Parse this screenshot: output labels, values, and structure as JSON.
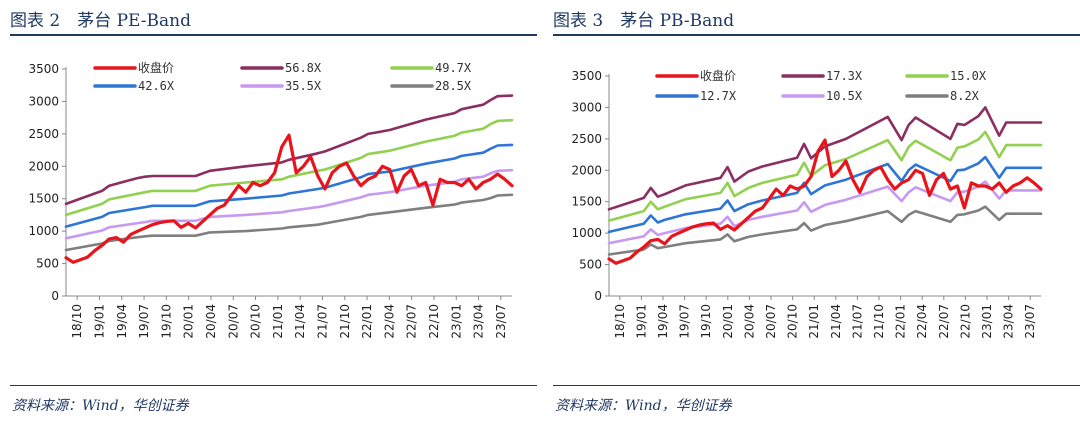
{
  "chart_data": [
    {
      "type": "line",
      "title": "图表 2　茅台 PE-Band",
      "source": "资料来源：Wind，华创证券",
      "ylim": [
        0,
        3500
      ],
      "yticks": [
        0,
        500,
        1000,
        1500,
        2000,
        2500,
        3000,
        3500
      ],
      "xticks": [
        "18/10",
        "19/01",
        "19/04",
        "19/07",
        "19/10",
        "20/01",
        "20/04",
        "20/07",
        "20/10",
        "21/01",
        "21/04",
        "21/07",
        "21/10",
        "22/01",
        "22/04",
        "22/07",
        "22/10",
        "23/01",
        "23/04",
        "23/07"
      ],
      "xrange": [
        0,
        62
      ],
      "series": [
        {
          "name": "收盘价",
          "color": "#e8141b",
          "width": 3.2,
          "x": [
            0,
            1,
            2,
            3,
            4,
            5,
            6,
            7,
            8,
            9,
            10,
            11,
            12,
            13,
            14,
            15,
            16,
            17,
            18,
            19,
            20,
            21,
            22,
            23,
            24,
            25,
            26,
            27,
            28,
            29,
            30,
            31,
            32,
            33,
            34,
            35,
            36,
            37,
            38,
            39,
            40,
            41,
            42,
            43,
            44,
            45,
            46,
            47,
            48,
            49,
            50,
            51,
            52,
            53,
            54,
            55,
            56,
            57,
            58,
            59,
            60,
            61,
            62
          ],
          "values": [
            590,
            520,
            560,
            600,
            700,
            780,
            880,
            900,
            830,
            950,
            1000,
            1050,
            1100,
            1130,
            1150,
            1160,
            1060,
            1120,
            1050,
            1150,
            1250,
            1350,
            1400,
            1550,
            1700,
            1600,
            1750,
            1700,
            1750,
            1900,
            2300,
            2480,
            1900,
            2000,
            2150,
            1850,
            1650,
            1900,
            2000,
            2050,
            1850,
            1700,
            1800,
            1850,
            2000,
            1950,
            1600,
            1850,
            1950,
            1700,
            1750,
            1400,
            1800,
            1750,
            1750,
            1700,
            1800,
            1650,
            1750,
            1800,
            1880,
            1800,
            1700
          ]
        },
        {
          "name": "56.8X",
          "color": "#8b2e61",
          "width": 2.6,
          "x": [
            0,
            5,
            6,
            10,
            11,
            12,
            13,
            17,
            18,
            20,
            25,
            30,
            31,
            35,
            36,
            41,
            42,
            45,
            50,
            54,
            55,
            58,
            59,
            60,
            62
          ],
          "values": [
            1420,
            1620,
            1700,
            1820,
            1840,
            1850,
            1850,
            1850,
            1850,
            1930,
            2000,
            2060,
            2100,
            2200,
            2230,
            2440,
            2500,
            2560,
            2720,
            2820,
            2880,
            2950,
            3020,
            3080,
            3090
          ]
        },
        {
          "name": "49.7X",
          "color": "#92d050",
          "width": 2.6,
          "x": [
            0,
            5,
            6,
            11,
            12,
            17,
            18,
            20,
            25,
            30,
            31,
            35,
            36,
            41,
            42,
            45,
            50,
            54,
            55,
            58,
            59,
            60,
            62
          ],
          "values": [
            1250,
            1420,
            1490,
            1600,
            1620,
            1620,
            1620,
            1700,
            1750,
            1800,
            1840,
            1930,
            1950,
            2130,
            2190,
            2240,
            2380,
            2470,
            2520,
            2580,
            2650,
            2700,
            2710
          ]
        },
        {
          "name": "42.6X",
          "color": "#2e75d6",
          "width": 2.6,
          "x": [
            0,
            5,
            6,
            11,
            12,
            17,
            18,
            20,
            25,
            30,
            31,
            35,
            36,
            41,
            42,
            45,
            50,
            54,
            55,
            58,
            59,
            60,
            62
          ],
          "values": [
            1070,
            1220,
            1280,
            1370,
            1390,
            1390,
            1390,
            1460,
            1500,
            1550,
            1580,
            1650,
            1670,
            1830,
            1880,
            1920,
            2040,
            2120,
            2160,
            2210,
            2270,
            2320,
            2330
          ]
        },
        {
          "name": "35.5X",
          "color": "#c899f0",
          "width": 2.6,
          "x": [
            0,
            5,
            6,
            11,
            12,
            17,
            18,
            20,
            25,
            30,
            31,
            35,
            36,
            41,
            42,
            45,
            50,
            54,
            55,
            58,
            59,
            60,
            62
          ],
          "values": [
            890,
            1010,
            1060,
            1140,
            1160,
            1160,
            1160,
            1220,
            1250,
            1290,
            1310,
            1370,
            1390,
            1520,
            1560,
            1600,
            1700,
            1760,
            1800,
            1840,
            1890,
            1930,
            1940
          ]
        },
        {
          "name": "28.5X",
          "color": "#7f7f7f",
          "width": 2.6,
          "x": [
            0,
            5,
            6,
            11,
            12,
            17,
            18,
            20,
            25,
            30,
            31,
            35,
            36,
            41,
            42,
            45,
            50,
            54,
            55,
            58,
            59,
            60,
            62
          ],
          "values": [
            710,
            810,
            850,
            920,
            930,
            930,
            930,
            980,
            1000,
            1040,
            1060,
            1100,
            1120,
            1220,
            1250,
            1290,
            1360,
            1410,
            1440,
            1480,
            1510,
            1550,
            1560
          ]
        }
      ]
    },
    {
      "type": "line",
      "title": "图表 3　茅台 PB-Band",
      "source": "资料来源：Wind，华创证券",
      "ylim": [
        0,
        3500
      ],
      "yticks": [
        0,
        500,
        1000,
        1500,
        2000,
        2500,
        3000,
        3500
      ],
      "xticks": [
        "18/10",
        "19/01",
        "19/04",
        "19/07",
        "19/10",
        "20/01",
        "20/04",
        "20/07",
        "20/10",
        "21/01",
        "21/04",
        "21/07",
        "21/10",
        "22/01",
        "22/04",
        "22/07",
        "22/10",
        "23/01",
        "23/04",
        "23/07"
      ],
      "xrange": [
        0,
        62
      ],
      "series": [
        {
          "name": "收盘价",
          "color": "#e8141b",
          "width": 3.2,
          "x": [
            0,
            1,
            2,
            3,
            4,
            5,
            6,
            7,
            8,
            9,
            10,
            11,
            12,
            13,
            14,
            15,
            16,
            17,
            18,
            19,
            20,
            21,
            22,
            23,
            24,
            25,
            26,
            27,
            28,
            29,
            30,
            31,
            32,
            33,
            34,
            35,
            36,
            37,
            38,
            39,
            40,
            41,
            42,
            43,
            44,
            45,
            46,
            47,
            48,
            49,
            50,
            51,
            52,
            53,
            54,
            55,
            56,
            57,
            58,
            59,
            60,
            61,
            62
          ],
          "values": [
            590,
            520,
            560,
            600,
            700,
            780,
            880,
            900,
            830,
            950,
            1000,
            1050,
            1100,
            1130,
            1150,
            1160,
            1060,
            1120,
            1050,
            1150,
            1250,
            1350,
            1400,
            1550,
            1700,
            1600,
            1750,
            1700,
            1750,
            1900,
            2300,
            2480,
            1900,
            2000,
            2150,
            1850,
            1650,
            1900,
            2000,
            2050,
            1850,
            1700,
            1800,
            1850,
            2000,
            1950,
            1600,
            1850,
            1950,
            1700,
            1750,
            1400,
            1800,
            1750,
            1750,
            1700,
            1800,
            1650,
            1750,
            1800,
            1880,
            1800,
            1700
          ]
        },
        {
          "name": "17.3X",
          "color": "#8b2e61",
          "width": 2.6,
          "x": [
            0,
            5,
            6,
            7,
            8,
            11,
            16,
            17,
            18,
            20,
            22,
            27,
            28,
            29,
            31,
            34,
            40,
            42,
            43,
            44,
            49,
            50,
            51,
            53,
            54,
            56,
            57,
            59,
            60,
            62
          ],
          "values": [
            1380,
            1560,
            1720,
            1580,
            1620,
            1760,
            1880,
            2050,
            1820,
            1980,
            2060,
            2200,
            2420,
            2190,
            2380,
            2500,
            2850,
            2480,
            2720,
            2840,
            2500,
            2740,
            2720,
            2860,
            3000,
            2550,
            2760,
            2760,
            2760,
            2760
          ]
        },
        {
          "name": "15.0X",
          "color": "#92d050",
          "width": 2.6,
          "x": [
            0,
            5,
            6,
            7,
            8,
            11,
            16,
            17,
            18,
            20,
            22,
            27,
            28,
            29,
            31,
            34,
            40,
            42,
            43,
            44,
            49,
            50,
            51,
            53,
            54,
            56,
            57,
            59,
            60,
            62
          ],
          "values": [
            1200,
            1350,
            1500,
            1380,
            1420,
            1540,
            1640,
            1800,
            1590,
            1720,
            1800,
            1930,
            2120,
            1910,
            2080,
            2180,
            2480,
            2160,
            2370,
            2470,
            2160,
            2360,
            2380,
            2490,
            2610,
            2210,
            2400,
            2400,
            2400,
            2400
          ]
        },
        {
          "name": "12.7X",
          "color": "#2e75d6",
          "width": 2.6,
          "x": [
            0,
            5,
            6,
            7,
            8,
            11,
            16,
            17,
            18,
            20,
            22,
            27,
            28,
            29,
            31,
            34,
            40,
            42,
            43,
            44,
            49,
            50,
            51,
            53,
            54,
            56,
            57,
            59,
            60,
            62
          ],
          "values": [
            1020,
            1150,
            1280,
            1170,
            1210,
            1300,
            1390,
            1520,
            1350,
            1460,
            1520,
            1640,
            1800,
            1620,
            1760,
            1850,
            2100,
            1830,
            2000,
            2090,
            1830,
            2000,
            2010,
            2110,
            2210,
            1880,
            2040,
            2040,
            2040,
            2040
          ]
        },
        {
          "name": "10.5X",
          "color": "#c899f0",
          "width": 2.6,
          "x": [
            0,
            5,
            6,
            7,
            8,
            11,
            16,
            17,
            18,
            20,
            22,
            27,
            28,
            29,
            31,
            34,
            40,
            42,
            43,
            44,
            49,
            50,
            51,
            53,
            54,
            56,
            57,
            59,
            60,
            62
          ],
          "values": [
            840,
            950,
            1060,
            970,
            1000,
            1080,
            1150,
            1260,
            1110,
            1210,
            1260,
            1360,
            1490,
            1340,
            1450,
            1530,
            1740,
            1510,
            1650,
            1730,
            1510,
            1650,
            1660,
            1740,
            1820,
            1550,
            1680,
            1680,
            1680,
            1680
          ]
        },
        {
          "name": "8.2X",
          "color": "#7f7f7f",
          "width": 2.6,
          "x": [
            0,
            5,
            6,
            7,
            8,
            11,
            16,
            17,
            18,
            20,
            22,
            27,
            28,
            29,
            31,
            34,
            40,
            42,
            43,
            44,
            49,
            50,
            51,
            53,
            54,
            56,
            57,
            59,
            60,
            62
          ],
          "values": [
            660,
            740,
            820,
            760,
            780,
            840,
            900,
            980,
            870,
            940,
            980,
            1060,
            1160,
            1040,
            1130,
            1190,
            1350,
            1180,
            1290,
            1350,
            1180,
            1290,
            1300,
            1360,
            1420,
            1210,
            1310,
            1310,
            1310,
            1310
          ]
        }
      ]
    }
  ]
}
